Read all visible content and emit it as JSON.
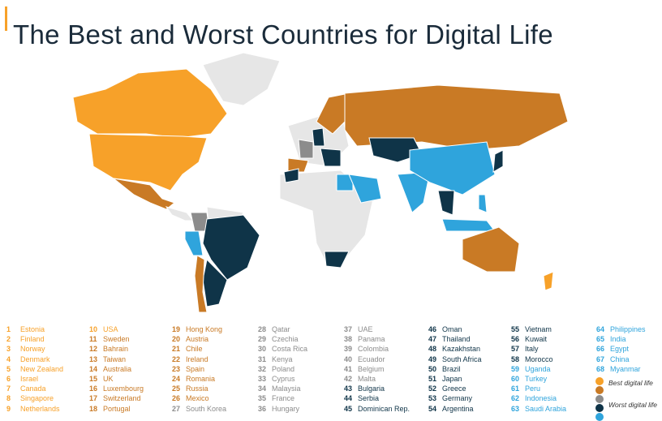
{
  "title": "The Best and Worst Countries for Digital Life",
  "colors": {
    "best": "#f7a129",
    "good": "#c97a25",
    "mid": "#8c8c8c",
    "bad": "#0f3448",
    "worst": "#2fa4dc",
    "nodata": "#e6e6e6"
  },
  "legend": {
    "best_label": "Best digital life",
    "worst_label": "Worst digital life"
  },
  "rankings": [
    {
      "rank": "1",
      "country": "Estonia",
      "group": "best"
    },
    {
      "rank": "2",
      "country": "Finland",
      "group": "best"
    },
    {
      "rank": "3",
      "country": "Norway",
      "group": "best"
    },
    {
      "rank": "4",
      "country": "Denmark",
      "group": "best"
    },
    {
      "rank": "5",
      "country": "New Zealand",
      "group": "best"
    },
    {
      "rank": "6",
      "country": "Israel",
      "group": "best"
    },
    {
      "rank": "7",
      "country": "Canada",
      "group": "best"
    },
    {
      "rank": "8",
      "country": "Singapore",
      "group": "best"
    },
    {
      "rank": "9",
      "country": "Netherlands",
      "group": "best"
    },
    {
      "rank": "10",
      "country": "USA",
      "group": "best"
    },
    {
      "rank": "11",
      "country": "Sweden",
      "group": "good"
    },
    {
      "rank": "12",
      "country": "Bahrain",
      "group": "good"
    },
    {
      "rank": "13",
      "country": "Taiwan",
      "group": "good"
    },
    {
      "rank": "14",
      "country": "Australia",
      "group": "good"
    },
    {
      "rank": "15",
      "country": "UK",
      "group": "good"
    },
    {
      "rank": "16",
      "country": "Luxembourg",
      "group": "good"
    },
    {
      "rank": "17",
      "country": "Switzerland",
      "group": "good"
    },
    {
      "rank": "18",
      "country": "Portugal",
      "group": "good"
    },
    {
      "rank": "19",
      "country": "Hong Kong",
      "group": "good"
    },
    {
      "rank": "20",
      "country": "Austria",
      "group": "good"
    },
    {
      "rank": "21",
      "country": "Chile",
      "group": "good"
    },
    {
      "rank": "22",
      "country": "Ireland",
      "group": "good"
    },
    {
      "rank": "23",
      "country": "Spain",
      "group": "good"
    },
    {
      "rank": "24",
      "country": "Romania",
      "group": "good"
    },
    {
      "rank": "25",
      "country": "Russia",
      "group": "good"
    },
    {
      "rank": "26",
      "country": "Mexico",
      "group": "good"
    },
    {
      "rank": "27",
      "country": "South Korea",
      "group": "mid"
    },
    {
      "rank": "28",
      "country": "Qatar",
      "group": "mid"
    },
    {
      "rank": "29",
      "country": "Czechia",
      "group": "mid"
    },
    {
      "rank": "30",
      "country": "Costa Rica",
      "group": "mid"
    },
    {
      "rank": "31",
      "country": "Kenya",
      "group": "mid"
    },
    {
      "rank": "32",
      "country": "Poland",
      "group": "mid"
    },
    {
      "rank": "33",
      "country": "Cyprus",
      "group": "mid"
    },
    {
      "rank": "34",
      "country": "Malaysia",
      "group": "mid"
    },
    {
      "rank": "35",
      "country": "France",
      "group": "mid"
    },
    {
      "rank": "36",
      "country": "Hungary",
      "group": "mid"
    },
    {
      "rank": "37",
      "country": "UAE",
      "group": "mid"
    },
    {
      "rank": "38",
      "country": "Panama",
      "group": "mid"
    },
    {
      "rank": "39",
      "country": "Colombia",
      "group": "mid"
    },
    {
      "rank": "40",
      "country": "Ecuador",
      "group": "mid"
    },
    {
      "rank": "41",
      "country": "Belgium",
      "group": "mid"
    },
    {
      "rank": "42",
      "country": "Malta",
      "group": "mid"
    },
    {
      "rank": "43",
      "country": "Bulgaria",
      "group": "bad"
    },
    {
      "rank": "44",
      "country": "Serbia",
      "group": "bad"
    },
    {
      "rank": "45",
      "country": "Dominican Rep.",
      "group": "bad"
    },
    {
      "rank": "46",
      "country": "Oman",
      "group": "bad"
    },
    {
      "rank": "47",
      "country": "Thailand",
      "group": "bad"
    },
    {
      "rank": "48",
      "country": "Kazakhstan",
      "group": "bad"
    },
    {
      "rank": "49",
      "country": "South Africa",
      "group": "bad"
    },
    {
      "rank": "50",
      "country": "Brazil",
      "group": "bad"
    },
    {
      "rank": "51",
      "country": "Japan",
      "group": "bad"
    },
    {
      "rank": "52",
      "country": "Greece",
      "group": "bad"
    },
    {
      "rank": "53",
      "country": "Germany",
      "group": "bad"
    },
    {
      "rank": "54",
      "country": "Argentina",
      "group": "bad"
    },
    {
      "rank": "55",
      "country": "Vietnam",
      "group": "bad"
    },
    {
      "rank": "56",
      "country": "Kuwait",
      "group": "bad"
    },
    {
      "rank": "57",
      "country": "Italy",
      "group": "bad"
    },
    {
      "rank": "58",
      "country": "Morocco",
      "group": "bad"
    },
    {
      "rank": "59",
      "country": "Uganda",
      "group": "worst"
    },
    {
      "rank": "60",
      "country": "Turkey",
      "group": "worst"
    },
    {
      "rank": "61",
      "country": "Peru",
      "group": "worst"
    },
    {
      "rank": "62",
      "country": "Indonesia",
      "group": "worst"
    },
    {
      "rank": "63",
      "country": "Saudi Arabia",
      "group": "worst"
    },
    {
      "rank": "64",
      "country": "Philippines",
      "group": "worst"
    },
    {
      "rank": "65",
      "country": "India",
      "group": "worst"
    },
    {
      "rank": "66",
      "country": "Egypt",
      "group": "worst"
    },
    {
      "rank": "67",
      "country": "China",
      "group": "worst"
    },
    {
      "rank": "68",
      "country": "Myanmar",
      "group": "worst"
    }
  ]
}
